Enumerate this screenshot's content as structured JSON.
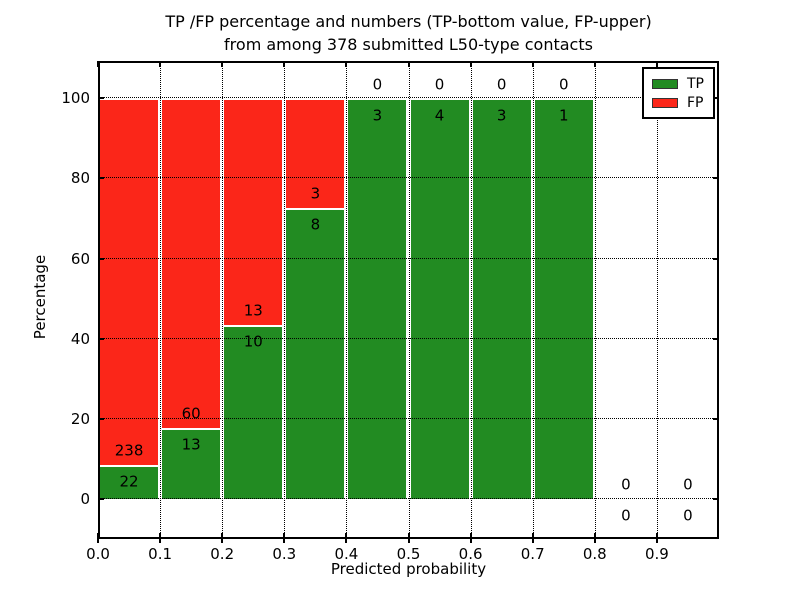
{
  "title": {
    "line1": "TP /FP percentage and numbers (TP-bottom value, FP-upper)",
    "line2": "from among 378 submitted L50-type contacts"
  },
  "legend": {
    "entries": [
      {
        "label": "TP",
        "color": "#228b22"
      },
      {
        "label": "FP",
        "color": "#fb2619"
      }
    ]
  },
  "chart_data": {
    "type": "bar",
    "stacked": true,
    "title": "TP /FP percentage and numbers (TP-bottom value, FP-upper)\nfrom among 378 submitted L50-type contacts",
    "xlabel": "Predicted probability",
    "ylabel": "Percentage",
    "total_contacts": 378,
    "xlim": [
      0,
      1
    ],
    "ylim": [
      -10.0,
      109.3
    ],
    "bin_edges": [
      0.0,
      0.1,
      0.2,
      0.3,
      0.4,
      0.5,
      0.6,
      0.7,
      0.8,
      0.9,
      1.0
    ],
    "xtick_values": [
      0.0,
      0.1,
      0.2,
      0.3,
      0.4,
      0.5,
      0.6,
      0.7,
      0.8,
      0.9
    ],
    "xtick_labels": [
      "0.0",
      "0.1",
      "0.2",
      "0.3",
      "0.4",
      "0.5",
      "0.6",
      "0.7",
      "0.8",
      "0.9"
    ],
    "ytick_values": [
      0,
      20,
      40,
      60,
      80,
      100
    ],
    "ytick_labels": [
      "0",
      "20",
      "40",
      "60",
      "80",
      "100"
    ],
    "grid": true,
    "legend_position": "upper right",
    "colors": {
      "tp": "#228b22",
      "fp": "#fb2619",
      "bar_edge": "#ffffff",
      "grid": "#000000"
    },
    "series": [
      {
        "name": "TP",
        "color": "#228b22",
        "counts": [
          22,
          13,
          10,
          8,
          3,
          4,
          3,
          1,
          0,
          0
        ],
        "percentages": [
          8.5,
          17.8,
          43.5,
          72.7,
          100,
          100,
          100,
          100,
          0,
          0
        ]
      },
      {
        "name": "FP",
        "color": "#fb2619",
        "counts": [
          238,
          60,
          13,
          3,
          0,
          0,
          0,
          0,
          0,
          0
        ],
        "percentages": [
          91.5,
          82.2,
          56.5,
          27.3,
          0,
          0,
          0,
          0,
          0,
          0
        ]
      }
    ],
    "label_rules": {
      "fp_label_offset_pct": 3.4,
      "tp_label_offset_pct": -4.3
    }
  }
}
